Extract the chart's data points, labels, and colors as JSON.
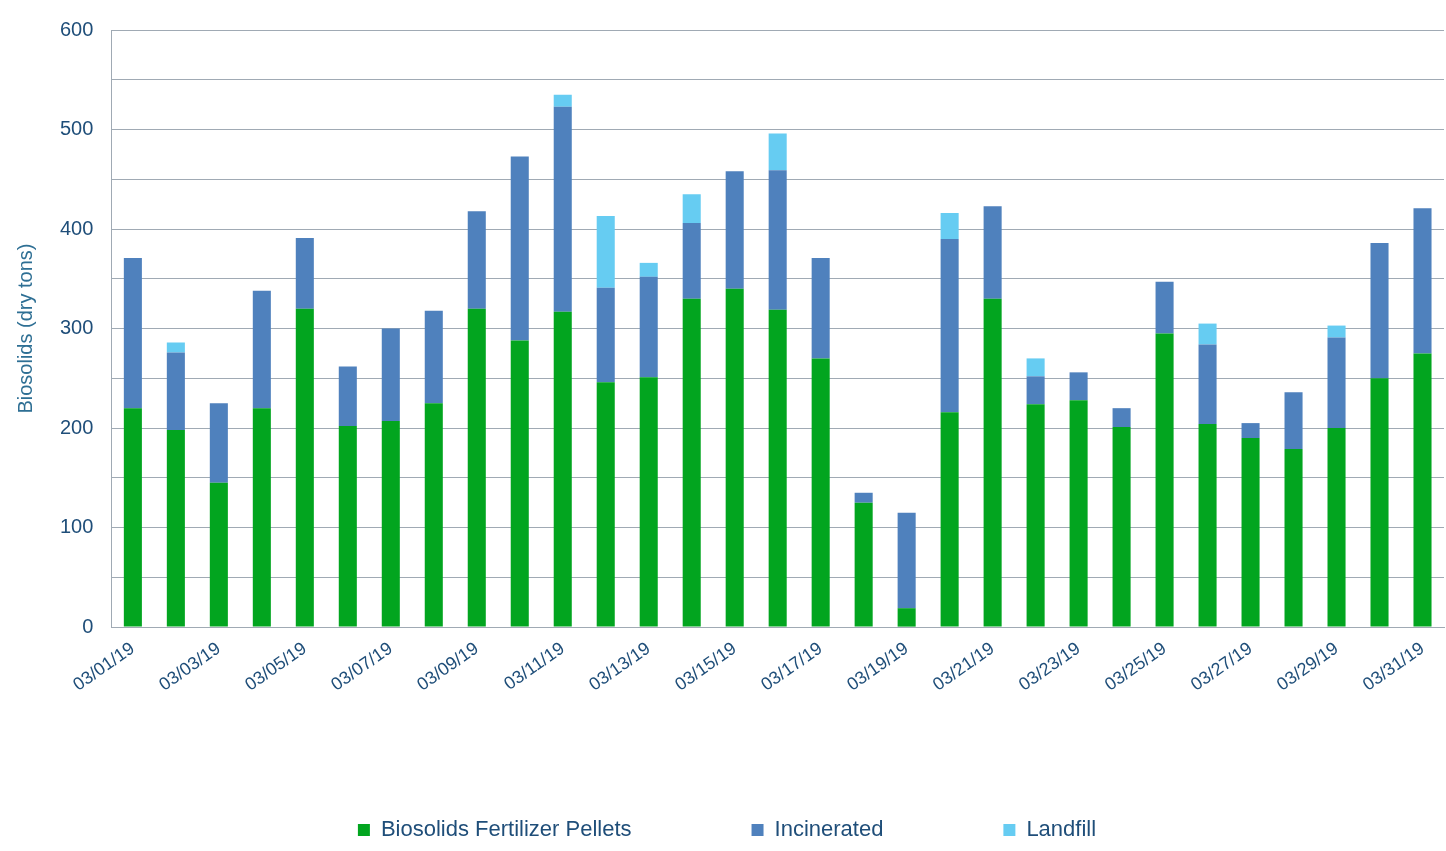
{
  "chart_data": {
    "type": "bar",
    "stacked": true,
    "ylabel": "Biosolids (dry tons)",
    "categories": [
      "03/01/19",
      null,
      "03/03/19",
      null,
      "03/05/19",
      null,
      "03/07/19",
      null,
      "03/09/19",
      null,
      "03/11/19",
      null,
      "03/13/19",
      null,
      "03/15/19",
      null,
      "03/17/19",
      null,
      "03/19/19",
      null,
      "03/21/19",
      null,
      "03/23/19",
      null,
      "03/25/19",
      null,
      "03/27/19",
      null,
      "03/29/19",
      null,
      "03/31/19"
    ],
    "series": [
      {
        "name": "Biosolids Fertilizer Pellets",
        "color": "#02a51f",
        "values": [
          220,
          198,
          145,
          220,
          320,
          202,
          207,
          225,
          320,
          288,
          317,
          246,
          251,
          330,
          340,
          319,
          270,
          125,
          19,
          216,
          330,
          224,
          228,
          201,
          295,
          204,
          190,
          179,
          200,
          250,
          275
        ]
      },
      {
        "name": "Incinerated",
        "color": "#4f81bd",
        "values": [
          151,
          78,
          80,
          118,
          71,
          60,
          93,
          93,
          98,
          185,
          206,
          95,
          101,
          76,
          118,
          140,
          101,
          10,
          96,
          174,
          93,
          28,
          28,
          19,
          52,
          80,
          15,
          57,
          91,
          136,
          146
        ]
      },
      {
        "name": "Landfill",
        "color": "#66ccf2",
        "values": [
          0,
          10,
          0,
          0,
          0,
          0,
          0,
          0,
          0,
          0,
          12,
          72,
          14,
          29,
          0,
          37,
          0,
          0,
          0,
          26,
          0,
          18,
          0,
          0,
          0,
          21,
          0,
          0,
          12,
          0,
          0
        ]
      }
    ],
    "ylim": [
      0,
      600
    ],
    "yticks": [
      0,
      {
        "value": 50,
        "label": null
      },
      100,
      {
        "value": 150,
        "label": null
      },
      200,
      {
        "value": 250,
        "label": null
      },
      300,
      {
        "value": 350,
        "label": null
      },
      400,
      {
        "value": 450,
        "label": null
      },
      500,
      {
        "value": 550,
        "label": null
      },
      600
    ],
    "grid": "y",
    "legend": "bottom"
  }
}
